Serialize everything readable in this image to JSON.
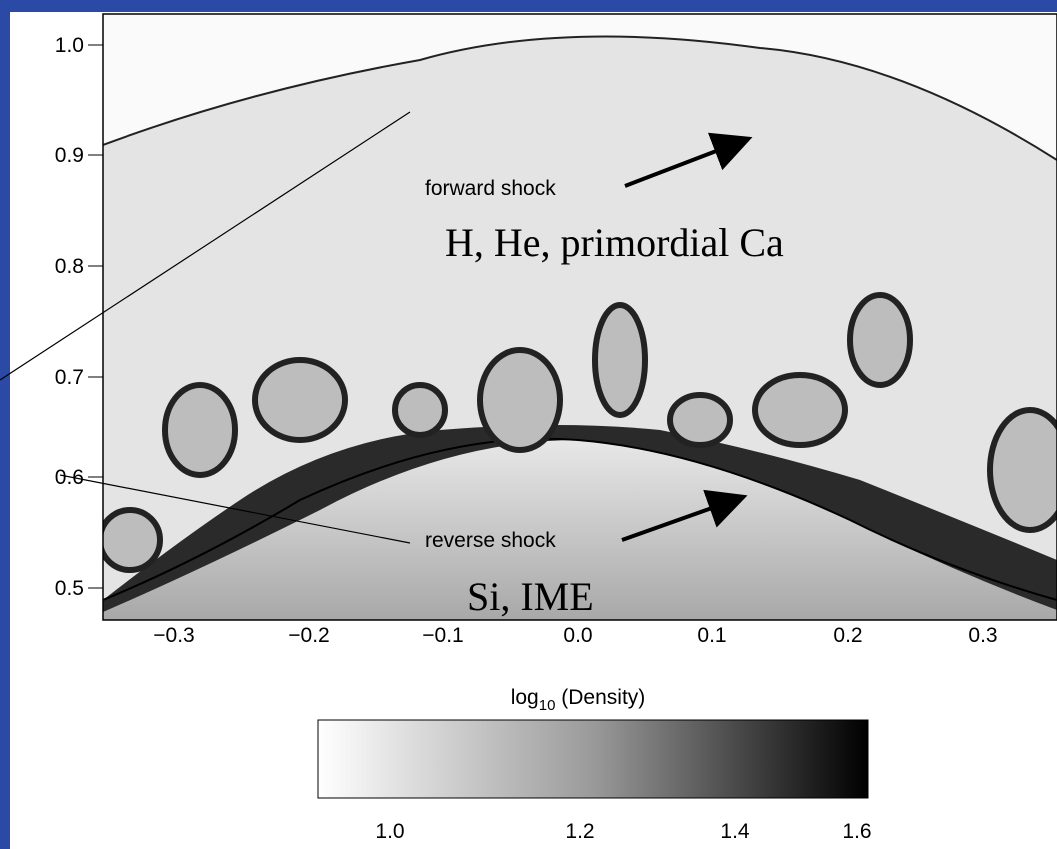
{
  "figure": {
    "y_ticks": [
      "1.0",
      "0.9",
      "0.8",
      "0.7",
      "0.6",
      "0.5"
    ],
    "x_ticks": [
      "−0.3",
      "−0.2",
      "−0.1",
      "0.0",
      "0.1",
      "0.2",
      "0.3"
    ],
    "colorbar_label": {
      "main": "log",
      "sub": "10",
      "rest": " (Density)"
    },
    "colorbar_ticks": [
      "1.0",
      "1.2",
      "1.4",
      "1.6"
    ],
    "annotations": {
      "forward_shock": "forward shock",
      "reverse_shock": "reverse shock"
    },
    "regions": {
      "outer": "H, He, primordial Ca",
      "inner": "Si, IME"
    }
  }
}
